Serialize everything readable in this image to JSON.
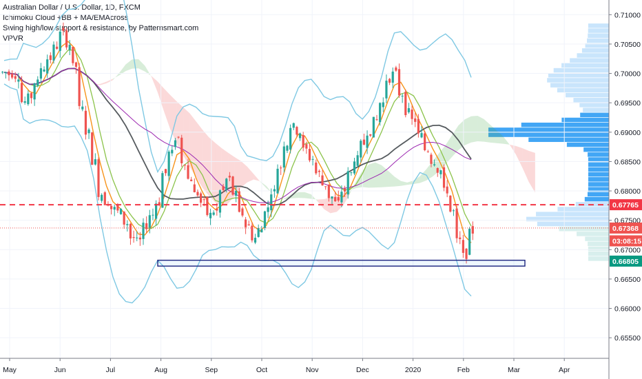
{
  "legend": {
    "title": "Australian Dollar / U.S. Dollar, 1D, FXCM",
    "line1": "Ichimoku Cloud +BB + MA/EMAcross",
    "line2": "Swing high/low support & resistance, by Patternsmart.com",
    "line3": "VPVR"
  },
  "chart_data": {
    "type": "line",
    "title": "Australian Dollar / U.S. Dollar, 1D, FXCM",
    "xlabel": "",
    "ylabel": "",
    "ylim": [
      0.6515,
      0.7125
    ],
    "y_ticks": [
      "0.71000",
      "0.70500",
      "0.70000",
      "0.69500",
      "0.69000",
      "0.68500",
      "0.68000",
      "0.67500",
      "0.67000",
      "0.66500",
      "0.66000",
      "0.65500"
    ],
    "x_ticks": [
      "May",
      "Jun",
      "Jul",
      "Aug",
      "Sep",
      "Oct",
      "Nov",
      "Dec",
      "2020",
      "Feb",
      "Mar",
      "Apr"
    ],
    "price_labels": [
      {
        "text": "0.67765",
        "value": 0.67765,
        "color": "#f23645"
      },
      {
        "text": "0.67368",
        "value": 0.67368,
        "color": "#ef5350"
      },
      {
        "text": "03:08:15",
        "value": 0.6715,
        "color": "#ef5350"
      },
      {
        "text": "0.66805",
        "value": 0.66805,
        "color": "#089981"
      }
    ],
    "key_levels": {
      "resistance_dashed": 0.67765,
      "last_price": 0.67368,
      "support_box": [
        0.6672,
        0.6682
      ]
    },
    "series": [
      {
        "name": "Price",
        "color": "#26a69a",
        "values": [
          0.7002,
          0.6998,
          0.6995,
          0.6952,
          0.696,
          0.6985,
          0.701,
          0.7025,
          0.7045,
          0.7068,
          0.705,
          0.7012,
          0.694,
          0.69,
          0.685,
          0.6795,
          0.678,
          0.677,
          0.6765,
          0.6745,
          0.672,
          0.6715,
          0.674,
          0.676,
          0.678,
          0.683,
          0.6865,
          0.689,
          0.685,
          0.682,
          0.6795,
          0.678,
          0.676,
          0.6765,
          0.68,
          0.682,
          0.6795,
          0.676,
          0.674,
          0.672,
          0.6735,
          0.677,
          0.68,
          0.684,
          0.688,
          0.691,
          0.69,
          0.687,
          0.6855,
          0.683,
          0.681,
          0.679,
          0.678,
          0.68,
          0.683,
          0.6855,
          0.688,
          0.69,
          0.692,
          0.695,
          0.699,
          0.7,
          0.6965,
          0.6935,
          0.692,
          0.6895,
          0.687,
          0.685,
          0.6835,
          0.68,
          0.6765,
          0.6715,
          0.669,
          0.673
        ]
      }
    ]
  }
}
